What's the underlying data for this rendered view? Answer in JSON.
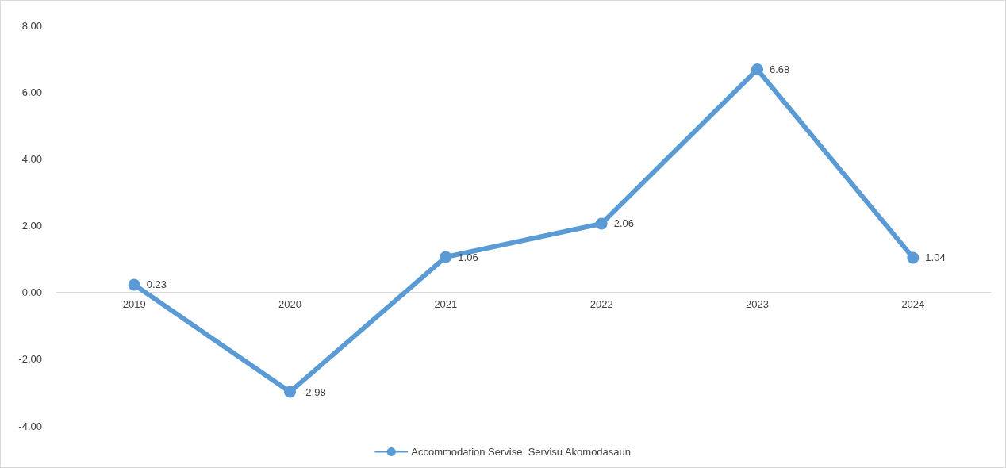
{
  "chart_data": {
    "type": "line",
    "categories": [
      "2019",
      "2020",
      "2021",
      "2022",
      "2023",
      "2024"
    ],
    "series": [
      {
        "name": "Accommodation Servise  Servisu Akomodasaun",
        "color": "#5b9bd5",
        "values": [
          0.23,
          -2.98,
          1.06,
          2.06,
          6.68,
          1.04
        ]
      }
    ],
    "ylim": [
      -4,
      8
    ],
    "yticks": [
      {
        "value": -4,
        "label": "-4.00"
      },
      {
        "value": -2,
        "label": "-2.00"
      },
      {
        "value": 0,
        "label": "0.00"
      },
      {
        "value": 2,
        "label": "2.00"
      },
      {
        "value": 4,
        "label": "4.00"
      },
      {
        "value": 6,
        "label": "6.00"
      },
      {
        "value": 8,
        "label": "8.00"
      }
    ],
    "data_labels": true,
    "grid": false,
    "legend": "bottom",
    "marker": "circle",
    "line_style": "solid"
  }
}
